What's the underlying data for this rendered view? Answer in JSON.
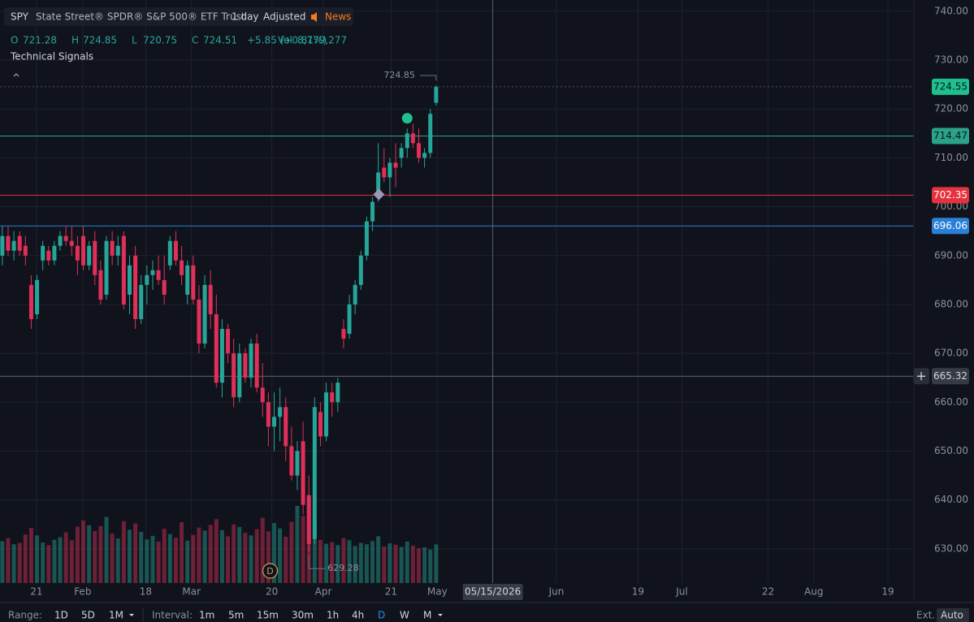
{
  "header": {
    "symbol": "SPY",
    "name": "State Street® SPDR® S&P 500® ETF Trust",
    "interval": "1 day",
    "adjusted": "Adjusted",
    "news": "News",
    "ohlc_letters": [
      "O",
      "H",
      "L",
      "C"
    ],
    "change": "+5.85 (+0.81%)",
    "vol_label": "Vol",
    "volume": "8,779,277",
    "signals_title": "Technical Signals"
  },
  "footer": {
    "range_label": "Range:",
    "ranges": [
      "1D",
      "5D",
      "1M"
    ],
    "interval_label": "Interval:",
    "intervals": [
      "1m",
      "5m",
      "15m",
      "30m",
      "1h",
      "4h",
      "D",
      "W",
      "M"
    ],
    "ext": "Ext.",
    "auto": "Auto"
  },
  "chart_data": {
    "type": "candlestick",
    "up_color": "#26a69a",
    "down_color": "#e0305a",
    "open": [
      690,
      694,
      691,
      694,
      692,
      684,
      678,
      689,
      691,
      689,
      692,
      694,
      693,
      692,
      694,
      688,
      693,
      687,
      682,
      693,
      690,
      694,
      682,
      690,
      677,
      684,
      686,
      687,
      685,
      688,
      693,
      689,
      682,
      688,
      681,
      672,
      684,
      678,
      664,
      675,
      670,
      661,
      670,
      665,
      672,
      663,
      660,
      655,
      657,
      659,
      651,
      645,
      652,
      641,
      632,
      658,
      653,
      662,
      660,
      675,
      674,
      680,
      684,
      690,
      697,
      702,
      708,
      706,
      709,
      710,
      712,
      715,
      713,
      710,
      711,
      721.28
    ],
    "high": [
      696,
      696,
      695,
      695,
      694,
      686,
      686,
      693,
      692,
      693,
      695,
      696,
      696,
      694,
      696,
      693,
      695,
      689,
      694,
      695,
      694,
      695,
      690,
      692,
      686,
      688,
      689,
      690,
      690,
      694,
      695,
      692,
      689,
      690,
      684,
      686,
      687,
      682,
      677,
      676,
      673,
      672,
      671,
      673,
      674,
      668,
      662,
      662,
      663,
      661,
      655,
      652,
      656,
      645,
      661,
      660,
      664,
      664,
      665,
      677,
      682,
      685,
      691,
      698,
      702,
      713,
      712,
      710,
      713,
      713,
      716,
      717,
      716,
      712,
      720,
      724.85
    ],
    "low": [
      688,
      690,
      689,
      690,
      688,
      675,
      677,
      687,
      688,
      688,
      691,
      692,
      690,
      686,
      687,
      687,
      684,
      680,
      681,
      688,
      688,
      679,
      678,
      675,
      676,
      680,
      683,
      684,
      680,
      687,
      688,
      684,
      680,
      680,
      670,
      671,
      675,
      663,
      661,
      668,
      659,
      660,
      664,
      663,
      662,
      657,
      651,
      650,
      652,
      648,
      644,
      642,
      637,
      629.28,
      631,
      651,
      652,
      657,
      658,
      671,
      673,
      678,
      683,
      689,
      695,
      701,
      705,
      702,
      704,
      708,
      710,
      712,
      709,
      708,
      710,
      720.75
    ],
    "close": [
      694,
      691,
      693,
      691,
      690,
      677,
      685,
      692,
      689,
      692,
      694,
      693,
      692,
      689,
      688,
      692,
      686,
      681,
      693,
      690,
      692,
      680,
      688,
      677,
      684,
      686,
      687,
      685,
      682,
      693,
      689,
      686,
      688,
      681,
      672,
      684,
      678,
      664,
      675,
      670,
      661,
      670,
      665,
      672,
      663,
      660,
      655,
      657,
      659,
      651,
      645,
      650,
      639,
      631,
      659,
      653,
      662,
      660,
      664,
      673,
      680,
      684,
      690,
      697,
      701,
      707,
      706,
      709,
      708,
      712,
      715,
      713,
      710,
      711,
      719,
      724.51
    ],
    "volume": [
      9500000,
      10200000,
      8800000,
      9100000,
      11000000,
      12500000,
      10800000,
      9200000,
      8600000,
      9800000,
      10400000,
      11500000,
      9700000,
      12800000,
      14200000,
      13100000,
      11800000,
      12900000,
      15000000,
      11200000,
      10100000,
      14000000,
      12100000,
      13500000,
      11600000,
      9900000,
      10700000,
      9400000,
      12300000,
      11100000,
      10300000,
      13800000,
      9600000,
      10900000,
      12600000,
      11900000,
      13200000,
      14500000,
      12000000,
      10600000,
      13300000,
      12700000,
      11400000,
      10800000,
      12200000,
      14800000,
      11700000,
      13600000,
      12400000,
      10500000,
      13900000,
      17500000,
      15200000,
      16300000,
      14100000,
      9800000,
      8900000,
      9300000,
      8600000,
      10200000,
      9700000,
      8400000,
      9100000,
      8800000,
      9500000,
      10600000,
      8300000,
      9000000,
      8700000,
      8200000,
      9400000,
      8500000,
      7900000,
      8100000,
      7600000,
      8779277
    ],
    "ylim": [
      623.0,
      742.3
    ],
    "yticks": [
      {
        "value": 630,
        "label": "630.00"
      },
      {
        "value": 640,
        "label": "640.00"
      },
      {
        "value": 650,
        "label": "650.00"
      },
      {
        "value": 660,
        "label": "660.00"
      },
      {
        "value": 670,
        "label": "670.00"
      },
      {
        "value": 680,
        "label": "680.00"
      },
      {
        "value": 690,
        "label": "690.00"
      },
      {
        "value": 700,
        "label": "700.00"
      },
      {
        "value": 710,
        "label": "710.00"
      },
      {
        "value": 720,
        "label": "720.00"
      },
      {
        "value": 730,
        "label": "730.00"
      },
      {
        "value": 740,
        "label": "740.00"
      }
    ],
    "xlim": [
      -0.4,
      157.6
    ],
    "xticks": [
      {
        "value": 5.9,
        "label": "21"
      },
      {
        "value": 13.9,
        "label": "Feb"
      },
      {
        "value": 24.8,
        "label": "18"
      },
      {
        "value": 32.7,
        "label": "Mar"
      },
      {
        "value": 46.6,
        "label": "20"
      },
      {
        "value": 55.5,
        "label": "Apr"
      },
      {
        "value": 67.2,
        "label": "21"
      },
      {
        "value": 75.2,
        "label": "May"
      },
      {
        "value": 84.8,
        "label": "05/15/2026"
      },
      {
        "value": 95.8,
        "label": "Jun"
      },
      {
        "value": 109.9,
        "label": "19"
      },
      {
        "value": 117.5,
        "label": "Jul"
      },
      {
        "value": 132.4,
        "label": "22"
      },
      {
        "value": 140.3,
        "label": "Aug"
      },
      {
        "value": 153.1,
        "label": "19"
      }
    ],
    "grid": true,
    "levels": [
      {
        "value": 724.55,
        "color": "#1fbf8f",
        "dashed": true
      },
      {
        "value": 714.47,
        "color": "#2aa38a",
        "dashed": false
      },
      {
        "value": 702.35,
        "color": "#e5323e",
        "dashed": false
      },
      {
        "value": 696.06,
        "color": "#2a7fd6",
        "dashed": false
      }
    ],
    "crosshair": {
      "x": 84.8,
      "y": 665.32
    },
    "signals": [
      {
        "shape": "circle",
        "x": 70.0,
        "value": 718.1,
        "color": "#1fbf8f"
      },
      {
        "shape": "diamond",
        "x": 65.1,
        "value": 702.5,
        "color": "#9a96b8"
      }
    ],
    "event": {
      "x": 46.3,
      "label": "D"
    }
  }
}
